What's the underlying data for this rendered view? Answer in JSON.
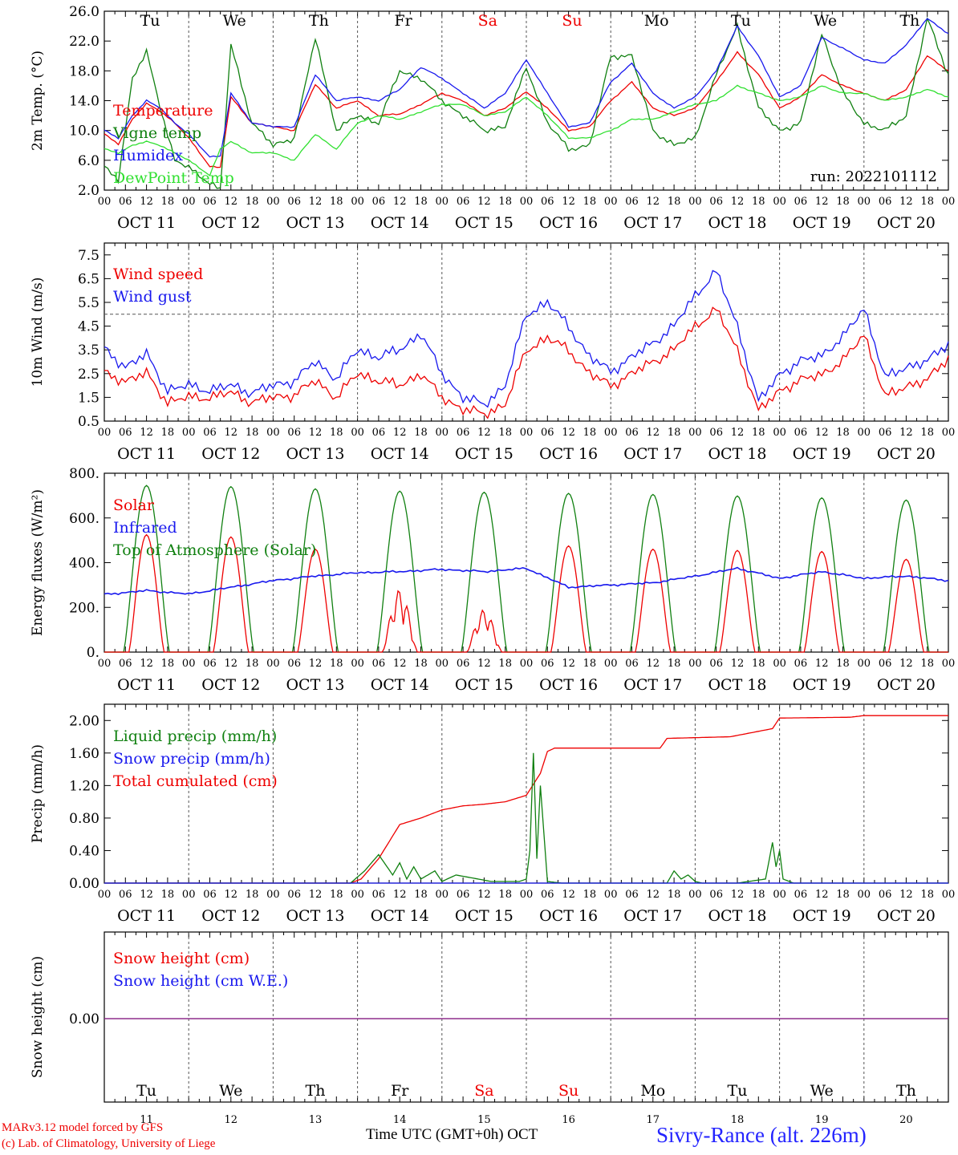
{
  "days": [
    {
      "abbr": "Tu",
      "date": "OCT 11",
      "num": "11",
      "weekend": false
    },
    {
      "abbr": "We",
      "date": "OCT 12",
      "num": "12",
      "weekend": false
    },
    {
      "abbr": "Th",
      "date": "OCT 13",
      "num": "13",
      "weekend": false
    },
    {
      "abbr": "Fr",
      "date": "OCT 14",
      "num": "14",
      "weekend": false
    },
    {
      "abbr": "Sa",
      "date": "OCT 15",
      "num": "15",
      "weekend": true
    },
    {
      "abbr": "Su",
      "date": "OCT 16",
      "num": "16",
      "weekend": true
    },
    {
      "abbr": "Mo",
      "date": "OCT 17",
      "num": "17",
      "weekend": false
    },
    {
      "abbr": "Tu",
      "date": "OCT 18",
      "num": "18",
      "weekend": false
    },
    {
      "abbr": "We",
      "date": "OCT 19",
      "num": "19",
      "weekend": false
    },
    {
      "abbr": "Th",
      "date": "OCT 20",
      "num": "20",
      "weekend": false
    }
  ],
  "hour_ticks": [
    "00",
    "06",
    "12",
    "18"
  ],
  "end_tick": "00",
  "colors": {
    "red": "#ee0000",
    "green": "#108010",
    "blue": "#1818ee",
    "lightgreen": "#30e030",
    "weekend": "#ee0000"
  },
  "footer": {
    "credit_line1": "MARv3.12 model forced by GFS",
    "credit_line2": "(c) Lab. of Climatology, University of Liege",
    "xlabel": "Time UTC (GMT+0h) OCT",
    "station": "Sivry-Rance (alt. 226m)"
  },
  "chart_data": [
    {
      "type": "line",
      "ylabel": "2m Temp. (°C)",
      "ylim": [
        2,
        26
      ],
      "yticks": [
        "2.0",
        "6.0",
        "10.0",
        "14.0",
        "18.0",
        "22.0",
        "26.0"
      ],
      "annotation": "run: 2022101112",
      "x_unit": "hours since OCT 11 00 UTC",
      "legend": [
        "Temperature",
        "Vigne temp",
        "Humidex",
        "DewPoint Temp"
      ],
      "series": [
        {
          "name": "Temperature",
          "color": "red",
          "x": [
            0,
            4,
            8,
            12,
            16,
            20,
            24,
            30,
            33,
            36,
            42,
            48,
            54,
            60,
            66,
            72,
            78,
            84,
            90,
            96,
            102,
            108,
            114,
            120,
            126,
            132,
            138,
            144,
            150,
            156,
            162,
            168,
            174,
            180,
            186,
            192,
            198,
            204,
            210,
            216,
            222,
            228,
            234,
            240
          ],
          "values": [
            9.5,
            8.2,
            11.5,
            13.6,
            12.6,
            11.0,
            9.0,
            5.2,
            5.0,
            14.5,
            11.0,
            10.5,
            10.0,
            16.2,
            13.0,
            14.0,
            12.0,
            12.2,
            13.5,
            15.0,
            14.0,
            12.0,
            13.0,
            15.2,
            13.0,
            10.0,
            10.5,
            14.0,
            16.5,
            13.0,
            12.0,
            13.0,
            16.5,
            20.5,
            17.5,
            13.0,
            14.5,
            17.5,
            16.0,
            15.0,
            14.0,
            15.5,
            20.0,
            18.0
          ]
        },
        {
          "name": "Vigne temp",
          "color": "green",
          "x": [
            0,
            4,
            8,
            12,
            16,
            20,
            24,
            30,
            33,
            36,
            42,
            48,
            54,
            60,
            66,
            72,
            78,
            84,
            90,
            96,
            102,
            108,
            114,
            120,
            126,
            132,
            138,
            144,
            150,
            156,
            162,
            168,
            174,
            180,
            186,
            192,
            198,
            204,
            210,
            216,
            222,
            228,
            234,
            240
          ],
          "values": [
            5.0,
            3.5,
            17.0,
            20.5,
            13.0,
            6.0,
            5.0,
            3.0,
            2.0,
            21.5,
            11.0,
            8.0,
            9.0,
            22.5,
            10.0,
            12.0,
            11.0,
            18.0,
            17.0,
            14.0,
            12.0,
            10.0,
            10.5,
            18.5,
            11.0,
            7.5,
            8.0,
            20.0,
            20.0,
            10.0,
            8.0,
            9.0,
            17.5,
            24.0,
            13.0,
            10.0,
            11.0,
            23.0,
            15.0,
            11.0,
            10.0,
            12.0,
            25.0,
            17.5
          ]
        },
        {
          "name": "Humidex",
          "color": "blue",
          "x": [
            0,
            4,
            8,
            12,
            16,
            20,
            24,
            30,
            33,
            36,
            42,
            48,
            54,
            60,
            66,
            72,
            78,
            84,
            90,
            96,
            102,
            108,
            114,
            120,
            126,
            132,
            138,
            144,
            150,
            156,
            162,
            168,
            174,
            180,
            186,
            192,
            198,
            204,
            210,
            216,
            222,
            228,
            234,
            240
          ],
          "values": [
            10.0,
            9.0,
            12.0,
            14.0,
            13.0,
            11.0,
            9.5,
            6.5,
            6.5,
            15.0,
            11.0,
            10.5,
            10.5,
            17.5,
            14.0,
            14.5,
            14.0,
            15.5,
            18.5,
            17.0,
            15.0,
            13.0,
            15.0,
            19.5,
            15.0,
            10.5,
            11.0,
            16.5,
            19.0,
            15.0,
            13.0,
            14.5,
            18.0,
            24.0,
            20.0,
            14.5,
            16.0,
            22.5,
            21.0,
            19.5,
            19.0,
            21.5,
            25.0,
            23.0
          ]
        },
        {
          "name": "DewPoint Temp",
          "color": "lightgreen",
          "x": [
            0,
            4,
            8,
            12,
            16,
            20,
            24,
            30,
            33,
            36,
            42,
            48,
            54,
            60,
            66,
            72,
            78,
            84,
            90,
            96,
            102,
            108,
            114,
            120,
            126,
            132,
            138,
            144,
            150,
            156,
            162,
            168,
            174,
            180,
            186,
            192,
            198,
            204,
            210,
            216,
            222,
            228,
            234,
            240
          ],
          "values": [
            7.5,
            7.0,
            8.0,
            8.5,
            8.0,
            7.0,
            6.0,
            4.0,
            7.5,
            8.5,
            7.0,
            7.0,
            6.0,
            9.5,
            7.5,
            11.0,
            12.0,
            11.5,
            12.5,
            13.5,
            13.5,
            12.0,
            12.5,
            14.5,
            12.0,
            9.0,
            9.0,
            10.0,
            11.5,
            11.5,
            12.5,
            13.5,
            14.0,
            16.0,
            15.0,
            14.0,
            14.5,
            16.0,
            15.0,
            15.0,
            14.0,
            14.5,
            15.5,
            14.5
          ]
        }
      ]
    },
    {
      "type": "line",
      "ylabel": "10m Wind (m/s)",
      "ylim": [
        0.5,
        8.0
      ],
      "yticks": [
        "0.5",
        "1.5",
        "2.5",
        "3.5",
        "4.5",
        "5.5",
        "6.5",
        "7.5"
      ],
      "reference_line": 5.0,
      "x_unit": "hours since OCT 11 00 UTC",
      "legend": [
        "Wind speed",
        "Wind gust"
      ],
      "series": [
        {
          "name": "Wind speed",
          "color": "red",
          "x": [
            0,
            6,
            12,
            18,
            24,
            30,
            36,
            42,
            48,
            54,
            60,
            66,
            72,
            78,
            84,
            90,
            96,
            102,
            108,
            114,
            120,
            126,
            132,
            138,
            144,
            150,
            156,
            162,
            168,
            174,
            180,
            186,
            192,
            198,
            204,
            210,
            216,
            222,
            228,
            234,
            240
          ],
          "values": [
            2.5,
            2.2,
            2.5,
            1.3,
            1.5,
            1.5,
            1.7,
            1.3,
            1.5,
            1.6,
            2.2,
            1.5,
            2.5,
            2.2,
            2.0,
            2.5,
            1.5,
            1.0,
            0.8,
            1.2,
            3.5,
            4.0,
            3.5,
            2.5,
            2.0,
            2.5,
            3.0,
            3.5,
            4.5,
            5.2,
            3.5,
            0.9,
            1.8,
            2.2,
            2.5,
            3.0,
            4.2,
            1.5,
            2.0,
            2.2,
            3.2
          ]
        },
        {
          "name": "Wind gust",
          "color": "blue",
          "x": [
            0,
            6,
            12,
            18,
            24,
            30,
            36,
            42,
            48,
            54,
            60,
            66,
            72,
            78,
            84,
            90,
            96,
            102,
            108,
            114,
            120,
            126,
            132,
            138,
            144,
            150,
            156,
            162,
            168,
            174,
            180,
            186,
            192,
            198,
            204,
            210,
            216,
            222,
            228,
            234,
            240
          ],
          "values": [
            3.5,
            2.8,
            3.3,
            1.8,
            2.0,
            1.8,
            2.0,
            1.7,
            2.0,
            2.2,
            3.0,
            2.3,
            3.5,
            3.2,
            3.5,
            4.2,
            2.5,
            1.5,
            1.2,
            2.0,
            5.0,
            5.5,
            4.5,
            3.2,
            2.6,
            3.2,
            3.8,
            4.5,
            5.8,
            6.8,
            4.5,
            1.3,
            2.5,
            3.0,
            3.3,
            4.0,
            5.3,
            2.3,
            2.8,
            3.0,
            3.8
          ]
        }
      ]
    },
    {
      "type": "line",
      "ylabel": "Energy fluxes (W/m²)",
      "ylim": [
        0,
        800
      ],
      "yticks": [
        "0.",
        "200.",
        "400.",
        "600.",
        "800."
      ],
      "x_unit": "hours since OCT 11 00 UTC",
      "legend": [
        "Solar",
        "Infrared",
        "Top of Atmosphere (Solar)"
      ],
      "daily_peaks": {
        "Solar": [
          525,
          515,
          460,
          280,
          190,
          475,
          460,
          455,
          450,
          415
        ],
        "Top of Atmosphere (Solar)": [
          745,
          740,
          730,
          720,
          715,
          710,
          705,
          698,
          690,
          680
        ]
      },
      "series": [
        {
          "name": "Infrared",
          "color": "blue",
          "x": [
            0,
            12,
            24,
            36,
            48,
            60,
            72,
            84,
            96,
            108,
            120,
            132,
            144,
            156,
            168,
            180,
            192,
            204,
            216,
            228,
            240
          ],
          "values": [
            258,
            275,
            260,
            290,
            320,
            340,
            355,
            360,
            370,
            360,
            375,
            290,
            300,
            310,
            340,
            375,
            330,
            360,
            330,
            340,
            320
          ]
        }
      ]
    },
    {
      "type": "line",
      "ylabel": "Precip (mm/h)",
      "ylim": [
        0,
        2.2
      ],
      "yticks": [
        "0.00",
        "0.40",
        "0.80",
        "1.20",
        "1.60",
        "2.00"
      ],
      "x_unit": "hours since OCT 11 00 UTC",
      "legend": [
        "Liquid precip (mm/h)",
        "Snow precip (mm/h)",
        "Total cumulated (cm)"
      ],
      "series": [
        {
          "name": "Total cumulated (cm)",
          "color": "red",
          "x": [
            0,
            70,
            73,
            78,
            84,
            90,
            96,
            102,
            108,
            114,
            120,
            124,
            126,
            128,
            132,
            150,
            158,
            160,
            178,
            190,
            192,
            212,
            216,
            240
          ],
          "values": [
            0,
            0,
            0.05,
            0.3,
            0.72,
            0.8,
            0.9,
            0.95,
            0.97,
            1.0,
            1.08,
            1.35,
            1.62,
            1.66,
            1.66,
            1.66,
            1.66,
            1.78,
            1.8,
            1.9,
            2.03,
            2.04,
            2.06,
            2.06
          ]
        },
        {
          "name": "Liquid precip (mm/h)",
          "color": "green",
          "x": [
            0,
            70,
            74,
            78,
            82,
            84,
            86,
            88,
            90,
            94,
            96,
            100,
            110,
            118,
            120,
            121,
            122,
            123,
            124,
            126,
            130,
            160,
            162,
            164,
            166,
            168,
            170,
            180,
            188,
            190,
            191,
            192,
            193,
            196,
            240
          ],
          "values": [
            0,
            0,
            0.15,
            0.35,
            0.1,
            0.25,
            0.05,
            0.2,
            0.05,
            0.15,
            0.02,
            0.1,
            0.02,
            0.02,
            0.05,
            0.4,
            1.6,
            0.3,
            1.2,
            0.02,
            0,
            0,
            0.15,
            0.05,
            0.1,
            0.02,
            0,
            0,
            0.05,
            0.5,
            0.2,
            0.4,
            0.05,
            0,
            0
          ]
        },
        {
          "name": "Snow precip (mm/h)",
          "color": "blue",
          "x": [
            0,
            240
          ],
          "values": [
            0,
            0
          ]
        }
      ]
    },
    {
      "type": "line",
      "ylabel": "Snow height (cm)",
      "yticks": [
        "0.00"
      ],
      "x_unit": "hours since OCT 11 00 UTC",
      "legend": [
        "Snow height (cm)",
        "Snow height (cm W.E.)"
      ],
      "series": [
        {
          "name": "Snow height (cm)",
          "color": "red",
          "x": [
            0,
            240
          ],
          "values": [
            0,
            0
          ]
        },
        {
          "name": "Snow height (cm W.E.)",
          "color": "blue",
          "x": [
            0,
            240
          ],
          "values": [
            0,
            0
          ]
        }
      ]
    }
  ]
}
